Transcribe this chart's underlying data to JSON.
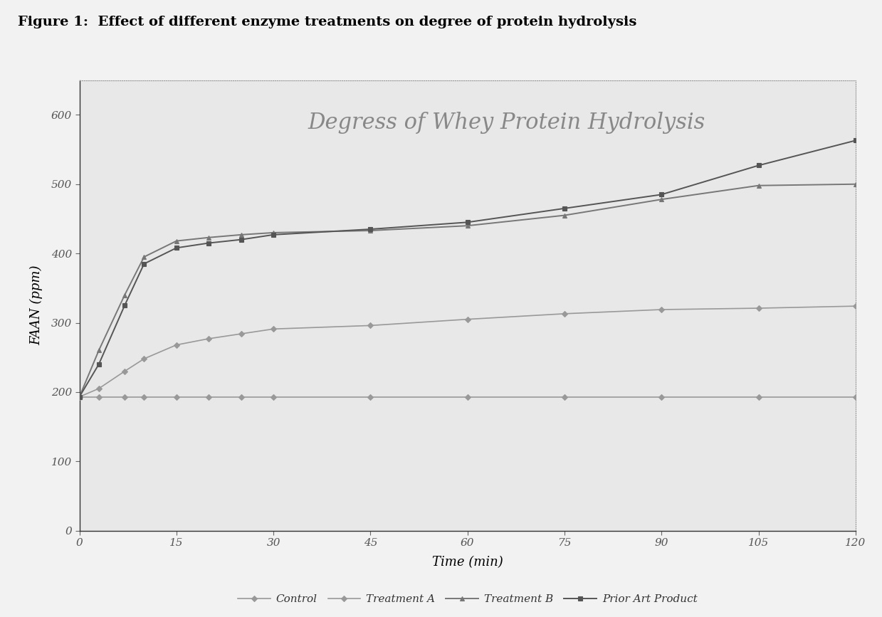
{
  "title": "Degress of Whey Protein Hydrolysis",
  "figure_title": "Figure 1:  Effect of different enzyme treatments on degree of protein hydrolysis",
  "xlabel": "Time (min)",
  "ylabel": "FAAN (ppm)",
  "xlim": [
    0,
    120
  ],
  "ylim": [
    0,
    650
  ],
  "xticks": [
    0,
    15,
    30,
    45,
    60,
    75,
    90,
    105,
    120
  ],
  "yticks": [
    0,
    100,
    200,
    300,
    400,
    500,
    600
  ],
  "series_names": [
    "Control",
    "Treatment A",
    "Treatment B",
    "Prior Art Product"
  ],
  "series_x": [
    [
      0,
      3,
      7,
      10,
      15,
      20,
      25,
      30,
      45,
      60,
      75,
      90,
      105,
      120
    ],
    [
      0,
      3,
      7,
      10,
      15,
      20,
      25,
      30,
      45,
      60,
      75,
      90,
      105,
      120
    ],
    [
      0,
      3,
      7,
      10,
      15,
      20,
      25,
      30,
      45,
      60,
      75,
      90,
      105,
      120
    ],
    [
      0,
      3,
      7,
      10,
      15,
      20,
      25,
      30,
      45,
      60,
      75,
      90,
      105,
      120
    ]
  ],
  "series_y": [
    [
      193,
      193,
      193,
      193,
      193,
      193,
      193,
      193,
      193,
      193,
      193,
      193,
      193,
      193
    ],
    [
      193,
      205,
      230,
      248,
      268,
      277,
      284,
      291,
      296,
      305,
      313,
      319,
      321,
      324
    ],
    [
      193,
      260,
      340,
      395,
      418,
      423,
      427,
      430,
      433,
      440,
      455,
      478,
      498,
      500
    ],
    [
      193,
      240,
      325,
      385,
      408,
      415,
      420,
      427,
      435,
      445,
      465,
      485,
      527,
      563
    ]
  ],
  "colors": [
    "#999999",
    "#999999",
    "#777777",
    "#555555"
  ],
  "markers": [
    "D",
    "D",
    "^",
    "s"
  ],
  "markersizes": [
    4,
    4,
    4,
    4
  ],
  "linewidths": [
    1.2,
    1.2,
    1.4,
    1.4
  ],
  "background_color": "#e8e8e8",
  "plot_bg_color": "#e8e8e8",
  "outer_bg_color": "#f2f2f2",
  "grid_color": "#bbbbbb",
  "title_fontsize": 22,
  "axis_label_fontsize": 13,
  "tick_fontsize": 11,
  "legend_fontsize": 11,
  "figure_title_fontsize": 14
}
